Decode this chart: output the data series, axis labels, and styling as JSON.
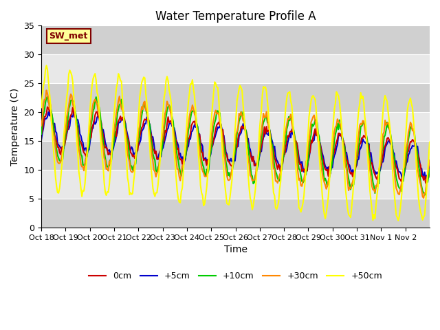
{
  "title": "Water Temperature Profile A",
  "xlabel": "Time",
  "ylabel": "Temperature (C)",
  "ylim": [
    0,
    35
  ],
  "background_color": "#ffffff",
  "plot_bg_color": "#e8e8e8",
  "legend_label": "SW_met",
  "legend_box_color": "#ffff99",
  "legend_box_edge": "#800000",
  "series_colors": {
    "0cm": "#cc0000",
    "+5cm": "#0000cc",
    "+10cm": "#00cc00",
    "+30cm": "#ff8800",
    "+50cm": "#ffff00"
  },
  "series_linewidth": 1.5,
  "n_points": 384,
  "x_tick_labels": [
    "Oct 18",
    "Oct 19",
    "Oct 20",
    "Oct 21",
    "Oct 22",
    "Oct 23",
    "Oct 24",
    "Oct 25",
    "Oct 26",
    "Oct 27",
    "Oct 28",
    "Oct 29",
    "Oct 30",
    "Oct 31",
    "Nov 1",
    "Nov 2"
  ],
  "n_days": 16
}
